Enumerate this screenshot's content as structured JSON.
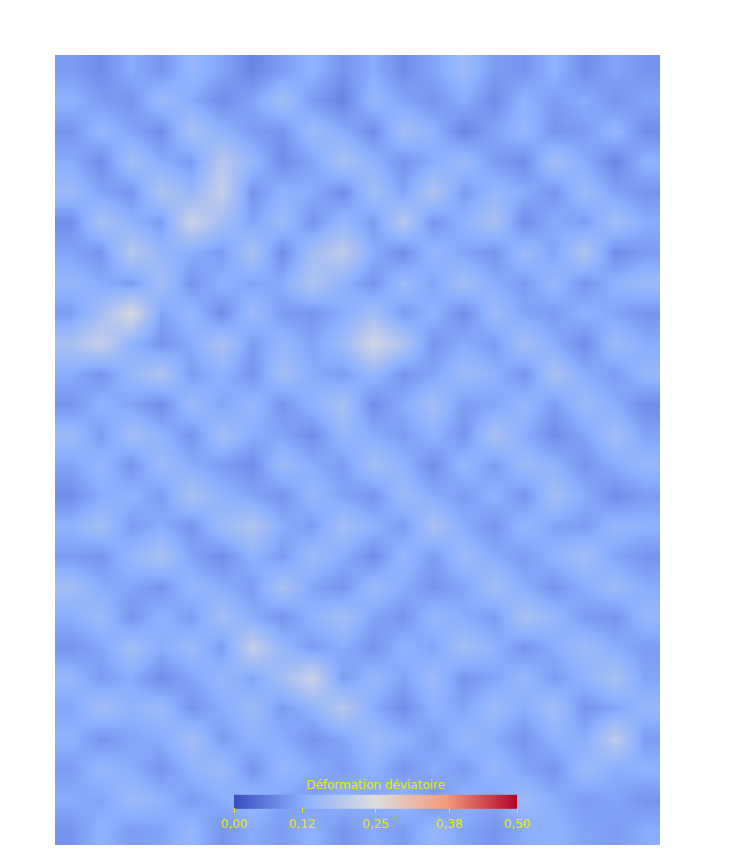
{
  "chart_data": {
    "type": "heatmap",
    "tick_labels": false,
    "grid": false,
    "colorbar": {
      "title": "Déformation déviatoire",
      "range": [
        0,
        0.5
      ],
      "ticks": [
        {
          "value": 0,
          "label": "0,00"
        },
        {
          "value": 0.12,
          "label": "0,12"
        },
        {
          "value": 0.25,
          "label": "0,25"
        },
        {
          "value": 0.38,
          "label": "0,38"
        },
        {
          "value": 0.5,
          "label": "0,50"
        }
      ]
    },
    "cells": [
      [
        0.1,
        0.08,
        0.12,
        0.09,
        0.14,
        0.11,
        0.07,
        0.1,
        0.13,
        0.09,
        0.12,
        0.08,
        0.11,
        0.15,
        0.1,
        0.09,
        0.13,
        0.08,
        0.11,
        0.09
      ],
      [
        0.13,
        0.1,
        0.09,
        0.15,
        0.12,
        0.08,
        0.11,
        0.16,
        0.1,
        0.07,
        0.14,
        0.11,
        0.09,
        0.12,
        0.08,
        0.13,
        0.1,
        0.12,
        0.09,
        0.11
      ],
      [
        0.09,
        0.14,
        0.11,
        0.08,
        0.17,
        0.13,
        0.1,
        0.09,
        0.15,
        0.12,
        0.08,
        0.16,
        0.13,
        0.07,
        0.11,
        0.14,
        0.09,
        0.1,
        0.14,
        0.08
      ],
      [
        0.12,
        0.08,
        0.16,
        0.12,
        0.1,
        0.19,
        0.14,
        0.08,
        0.11,
        0.17,
        0.13,
        0.09,
        0.12,
        0.15,
        0.1,
        0.08,
        0.16,
        0.12,
        0.07,
        0.13
      ],
      [
        0.15,
        0.11,
        0.09,
        0.18,
        0.14,
        0.21,
        0.09,
        0.13,
        0.12,
        0.08,
        0.16,
        0.11,
        0.18,
        0.1,
        0.14,
        0.12,
        0.09,
        0.15,
        0.11,
        0.09
      ],
      [
        0.08,
        0.17,
        0.13,
        0.1,
        0.22,
        0.16,
        0.11,
        0.15,
        0.09,
        0.14,
        0.1,
        0.19,
        0.09,
        0.13,
        0.17,
        0.08,
        0.12,
        0.1,
        0.16,
        0.12
      ],
      [
        0.11,
        0.09,
        0.19,
        0.14,
        0.12,
        0.1,
        0.17,
        0.08,
        0.16,
        0.2,
        0.12,
        0.08,
        0.14,
        0.11,
        0.09,
        0.15,
        0.11,
        0.18,
        0.08,
        0.1
      ],
      [
        0.14,
        0.12,
        0.1,
        0.16,
        0.09,
        0.13,
        0.11,
        0.12,
        0.18,
        0.13,
        0.09,
        0.15,
        0.11,
        0.16,
        0.12,
        0.1,
        0.14,
        0.09,
        0.13,
        0.15
      ],
      [
        0.1,
        0.16,
        0.24,
        0.11,
        0.14,
        0.08,
        0.15,
        0.1,
        0.09,
        0.12,
        0.16,
        0.1,
        0.13,
        0.08,
        0.15,
        0.11,
        0.1,
        0.13,
        0.11,
        0.09
      ],
      [
        0.17,
        0.21,
        0.13,
        0.09,
        0.12,
        0.17,
        0.1,
        0.14,
        0.11,
        0.15,
        0.23,
        0.18,
        0.09,
        0.12,
        0.1,
        0.16,
        0.12,
        0.08,
        0.15,
        0.12
      ],
      [
        0.12,
        0.09,
        0.14,
        0.18,
        0.1,
        0.13,
        0.09,
        0.16,
        0.12,
        0.1,
        0.14,
        0.09,
        0.11,
        0.15,
        0.13,
        0.09,
        0.17,
        0.12,
        0.1,
        0.14
      ],
      [
        0.09,
        0.13,
        0.11,
        0.08,
        0.15,
        0.11,
        0.14,
        0.09,
        0.13,
        0.17,
        0.08,
        0.12,
        0.16,
        0.1,
        0.11,
        0.14,
        0.1,
        0.15,
        0.12,
        0.08
      ],
      [
        0.15,
        0.1,
        0.16,
        0.13,
        0.09,
        0.16,
        0.12,
        0.11,
        0.08,
        0.14,
        0.12,
        0.1,
        0.13,
        0.09,
        0.17,
        0.12,
        0.08,
        0.11,
        0.16,
        0.11
      ],
      [
        0.11,
        0.14,
        0.09,
        0.15,
        0.12,
        0.1,
        0.08,
        0.15,
        0.12,
        0.1,
        0.16,
        0.13,
        0.08,
        0.14,
        0.1,
        0.15,
        0.13,
        0.09,
        0.12,
        0.14
      ],
      [
        0.08,
        0.12,
        0.13,
        0.1,
        0.17,
        0.13,
        0.11,
        0.09,
        0.14,
        0.11,
        0.09,
        0.15,
        0.12,
        0.1,
        0.13,
        0.09,
        0.16,
        0.12,
        0.08,
        0.1
      ],
      [
        0.13,
        0.16,
        0.1,
        0.12,
        0.09,
        0.15,
        0.18,
        0.12,
        0.1,
        0.16,
        0.13,
        0.1,
        0.17,
        0.12,
        0.09,
        0.14,
        0.11,
        0.1,
        0.14,
        0.13
      ],
      [
        0.1,
        0.09,
        0.14,
        0.17,
        0.11,
        0.08,
        0.13,
        0.1,
        0.15,
        0.12,
        0.08,
        0.14,
        0.1,
        0.15,
        0.12,
        0.1,
        0.13,
        0.16,
        0.11,
        0.09
      ],
      [
        0.16,
        0.12,
        0.11,
        0.09,
        0.14,
        0.12,
        0.1,
        0.17,
        0.11,
        0.09,
        0.15,
        0.12,
        0.09,
        0.11,
        0.16,
        0.12,
        0.09,
        0.12,
        0.15,
        0.12
      ],
      [
        0.12,
        0.15,
        0.09,
        0.13,
        0.1,
        0.16,
        0.12,
        0.09,
        0.13,
        0.16,
        0.11,
        0.09,
        0.14,
        0.12,
        0.1,
        0.17,
        0.14,
        0.1,
        0.09,
        0.14
      ],
      [
        0.09,
        0.11,
        0.16,
        0.12,
        0.15,
        0.1,
        0.21,
        0.14,
        0.1,
        0.12,
        0.09,
        0.13,
        0.11,
        0.16,
        0.13,
        0.09,
        0.12,
        0.15,
        0.12,
        0.1
      ],
      [
        0.14,
        0.1,
        0.12,
        0.08,
        0.11,
        0.14,
        0.11,
        0.16,
        0.22,
        0.1,
        0.14,
        0.11,
        0.15,
        0.09,
        0.11,
        0.14,
        0.1,
        0.13,
        0.17,
        0.11
      ],
      [
        0.11,
        0.16,
        0.13,
        0.15,
        0.09,
        0.12,
        0.15,
        0.1,
        0.13,
        0.19,
        0.12,
        0.08,
        0.13,
        0.11,
        0.15,
        0.12,
        0.16,
        0.09,
        0.11,
        0.14
      ],
      [
        0.13,
        0.09,
        0.11,
        0.12,
        0.16,
        0.1,
        0.13,
        0.12,
        0.09,
        0.11,
        0.15,
        0.13,
        0.1,
        0.14,
        0.12,
        0.09,
        0.13,
        0.12,
        0.2,
        0.1
      ],
      [
        0.1,
        0.14,
        0.12,
        0.09,
        0.13,
        0.15,
        0.09,
        0.14,
        0.12,
        0.1,
        0.13,
        0.09,
        0.12,
        0.1,
        0.14,
        0.11,
        0.09,
        0.15,
        0.12,
        0.13
      ],
      [
        0.12,
        0.11,
        0.15,
        0.13,
        0.1,
        0.12,
        0.14,
        0.11,
        0.1,
        0.13,
        0.11,
        0.14,
        0.09,
        0.13,
        0.11,
        0.15,
        0.12,
        0.1,
        0.11,
        0.09
      ],
      [
        0.09,
        0.13,
        0.1,
        0.11,
        0.14,
        0.09,
        0.12,
        0.1,
        0.13,
        0.09,
        0.12,
        0.1,
        0.14,
        0.11,
        0.09,
        0.12,
        0.13,
        0.11,
        0.1,
        0.12
      ]
    ]
  }
}
